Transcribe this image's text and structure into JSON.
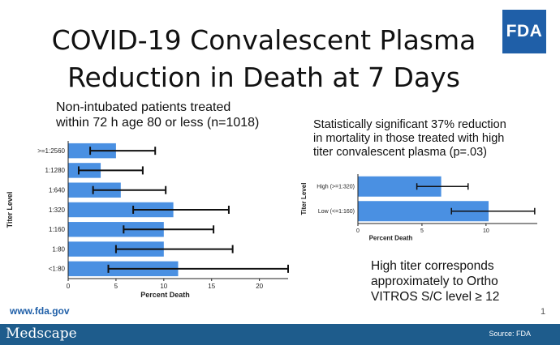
{
  "slide": {
    "title_line1": "COVID-19 Convalescent Plasma",
    "title_line2": "Reduction in Death at 7 Days",
    "logo_text": "FDA",
    "left_text": [
      "Non-intubated patients treated",
      "within 72 h age 80 or less (n=1018)"
    ],
    "right_text": [
      "Statistically significant 37% reduction",
      "in mortality in those treated with high",
      "titer convalescent plasma (p=.03)"
    ],
    "note_text": [
      "High titer corresponds",
      "approximately to Ortho",
      "VITROS S/C level ≥ 12"
    ],
    "url": "www.fda.gov",
    "page_number": "1",
    "footer_brand": "Medscape",
    "source": "Source: FDA"
  },
  "colors": {
    "bar": "#4a90e2",
    "footer": "#1e5c8c",
    "logo": "#1f5fa8"
  },
  "chart_data": [
    {
      "type": "bar",
      "orientation": "horizontal",
      "categories": [
        ">=1:2560",
        "1:1280",
        "1:640",
        "1:320",
        "1:160",
        "1:80",
        "<1:80"
      ],
      "values": [
        5.0,
        3.4,
        5.5,
        11.0,
        10.0,
        10.0,
        11.5
      ],
      "error_low": [
        2.3,
        1.1,
        2.6,
        6.8,
        5.8,
        5.0,
        4.2
      ],
      "error_high": [
        9.1,
        7.8,
        10.2,
        16.8,
        15.2,
        17.2,
        23.0
      ],
      "xlabel": "Percent Death",
      "ylabel": "Titer Level",
      "xlim": [
        0,
        23
      ],
      "xticks": [
        0,
        5,
        10,
        15,
        20
      ]
    },
    {
      "type": "bar",
      "orientation": "horizontal",
      "categories": [
        "High (>=1:320)",
        "Low (<=1:160)"
      ],
      "values": [
        6.5,
        10.2
      ],
      "error_low": [
        4.6,
        7.3
      ],
      "error_high": [
        8.6,
        13.8
      ],
      "xlabel": "Percent Death",
      "ylabel": "Titer Level",
      "xlim": [
        0,
        14
      ],
      "xticks": [
        0,
        5,
        10
      ]
    }
  ]
}
